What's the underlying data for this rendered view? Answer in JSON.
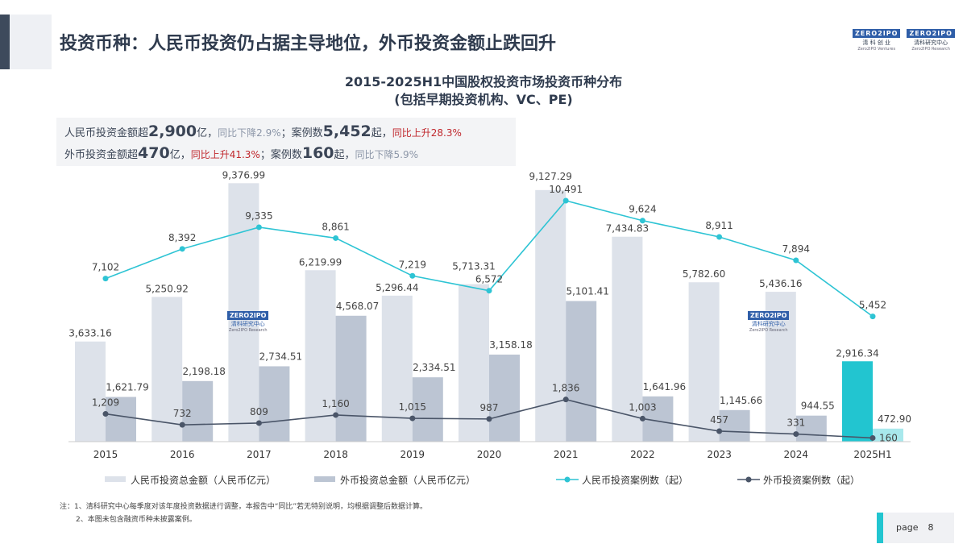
{
  "header": {
    "title": "投资币种：人民币投资仍占据主导地位，外币投资金额止跌回升"
  },
  "logos": [
    {
      "mark": "ZERO2IPO",
      "cn": "清 科 创 业",
      "en": "Zero2IPO Ventures"
    },
    {
      "mark": "ZERO2IPO",
      "cn": "清科研究中心",
      "en": "Zero2IPO Research"
    }
  ],
  "watermark": {
    "mark": "ZERO2IPO",
    "cn": "清科研究中心",
    "en": "Zero2IPO Research"
  },
  "summary": {
    "line1": [
      "人民币投资金额超",
      "2,900",
      "亿，",
      "同比下降2.9%",
      "；案例数",
      "5,452",
      "起，",
      "同比上升28.3%"
    ],
    "line2": [
      "外币投资金额超",
      "470",
      "亿，",
      "同比上升41.3%",
      "；案例数",
      "160",
      "起，",
      "同比下降5.9%"
    ]
  },
  "chart_data": {
    "type": "bar+line",
    "title": "2015-2025H1中国股权投资市场投资币种分布",
    "subtitle": "(包括早期投资机构、VC、PE)",
    "categories": [
      "2015",
      "2016",
      "2017",
      "2018",
      "2019",
      "2020",
      "2021",
      "2022",
      "2023",
      "2024",
      "2025H1"
    ],
    "primary_ylim": [
      0,
      10000
    ],
    "secondary_ylim": [
      0,
      12000
    ],
    "grid": false,
    "legend_position": "bottom",
    "series": [
      {
        "name": "人民币投资总金额（人民币亿元）",
        "type": "bar",
        "axis": "primary",
        "color": "#dde2ea",
        "highlight_color": "#22c5d0",
        "labels": [
          "3,633.16",
          "5,250.92",
          "9,376.99",
          "6,219.99",
          "5,296.44",
          "5,713.31",
          "9,127.29",
          "7,434.83",
          "5,782.60",
          "5,436.16",
          "2,916.34"
        ],
        "values": [
          3633.16,
          5250.92,
          9376.99,
          6219.99,
          5296.44,
          5713.31,
          9127.29,
          7434.83,
          5782.6,
          5436.16,
          2916.34
        ]
      },
      {
        "name": "外币投资总金额（人民币亿元）",
        "type": "bar",
        "axis": "primary",
        "color": "#bcc5d3",
        "highlight_color": "#a8e8ec",
        "labels": [
          "1,621.79",
          "2,198.18",
          "2,734.51",
          "4,568.07",
          "2,334.51",
          "3,158.18",
          "5,101.41",
          "1,641.96",
          "1,145.66",
          "944.55",
          "472.90"
        ],
        "values": [
          1621.79,
          2198.18,
          2734.51,
          4568.07,
          2334.51,
          3158.18,
          5101.41,
          1641.96,
          1145.66,
          944.55,
          472.9
        ]
      },
      {
        "name": "人民币投资案例数（起）",
        "type": "line",
        "axis": "secondary",
        "color": "#2ec4d4",
        "labels": [
          "7,102",
          "8,392",
          "9,335",
          "8,861",
          "7,219",
          "6,572",
          "10,491",
          "9,624",
          "8,911",
          "7,894",
          "5,452"
        ],
        "values": [
          7102,
          8392,
          9335,
          8861,
          7219,
          6572,
          10491,
          9624,
          8911,
          7894,
          5452
        ]
      },
      {
        "name": "外币投资案例数（起）",
        "type": "line",
        "axis": "secondary",
        "color": "#4a5568",
        "labels": [
          "1,209",
          "732",
          "809",
          "1,160",
          "1,015",
          "987",
          "1,836",
          "1,003",
          "457",
          "331",
          "160"
        ],
        "values": [
          1209,
          732,
          809,
          1160,
          1015,
          987,
          1836,
          1003,
          457,
          331,
          160
        ]
      }
    ]
  },
  "notes": {
    "line1": "注：1、清科研究中心每季度对该年度投资数据进行调整，本报告中“同比”若无特别说明，均根据调整后数据计算。",
    "line2": "2、本图未包含融资币种未披露案例。"
  },
  "page": {
    "label": "page",
    "number": "8"
  }
}
